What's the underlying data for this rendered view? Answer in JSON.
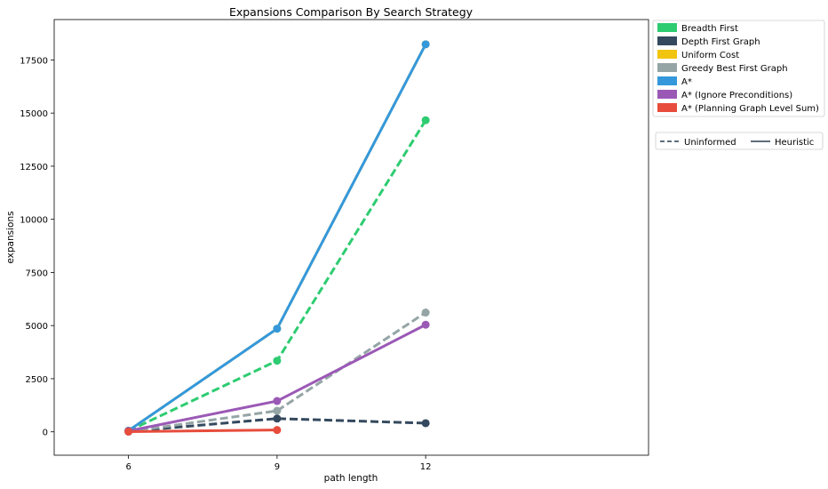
{
  "chart_data": {
    "type": "line",
    "title": "Expansions Comparison By Search Strategy",
    "xlabel": "path length",
    "ylabel": "expansions",
    "categories": [
      "6",
      "9",
      "12"
    ],
    "yticks": [
      0,
      2500,
      5000,
      7500,
      10000,
      12500,
      15000,
      17500
    ],
    "ylim": [
      -1100,
      19400
    ],
    "grid": false,
    "legend_position": "outside-top-right",
    "series": [
      {
        "name": "Breadth First",
        "color": "#2ecc71",
        "style": "dashed",
        "values": [
          43,
          3346,
          14663
        ]
      },
      {
        "name": "Depth First Graph",
        "color": "#34495e",
        "style": "dashed",
        "values": [
          21,
          624,
          408
        ]
      },
      {
        "name": "Uniform Cost",
        "color": "#f1c40f",
        "style": "dashed",
        "values": [
          55,
          4853,
          18235
        ]
      },
      {
        "name": "Greedy Best First Graph",
        "color": "#95a5a6",
        "style": "dashed",
        "values": [
          7,
          990,
          5614
        ]
      },
      {
        "name": "A*",
        "color": "#3498db",
        "style": "solid",
        "values": [
          55,
          4853,
          18235
        ]
      },
      {
        "name": "A* (Ignore Preconditions)",
        "color": "#9b59b6",
        "style": "solid",
        "values": [
          41,
          1450,
          5040
        ]
      },
      {
        "name": "A* (Planning Graph Level Sum)",
        "color": "#e74c3c",
        "style": "solid",
        "values": [
          11,
          86,
          null
        ]
      }
    ],
    "style_legend": [
      {
        "label": "Uninformed",
        "style": "dashed"
      },
      {
        "label": "Heuristic",
        "style": "solid"
      }
    ]
  }
}
